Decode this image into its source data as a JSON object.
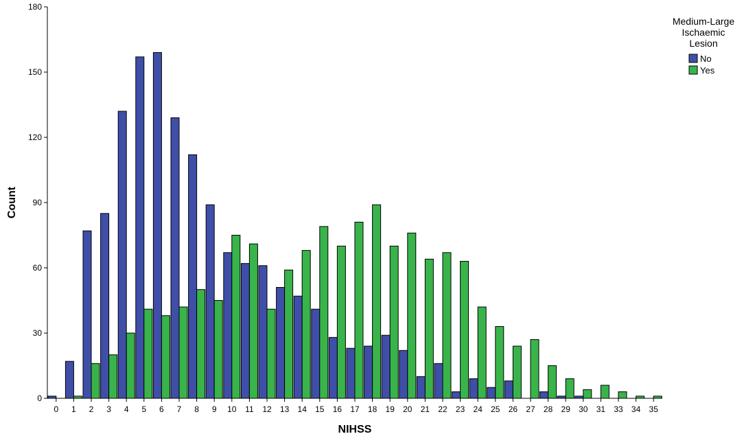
{
  "chart_data": {
    "type": "bar",
    "title": "",
    "xlabel": "NIHSS",
    "ylabel": "Count",
    "ylim": [
      0,
      180
    ],
    "yticks": [
      0,
      30,
      60,
      90,
      120,
      150,
      180
    ],
    "grid": false,
    "legend": {
      "title": "Medium-Large Ischaemic Lesion",
      "title_lines": [
        "Medium-Large",
        "Ischaemic",
        "Lesion"
      ],
      "placement": "top-right"
    },
    "categories": [
      "0",
      "1",
      "2",
      "3",
      "4",
      "5",
      "6",
      "7",
      "8",
      "9",
      "10",
      "11",
      "12",
      "13",
      "14",
      "15",
      "16",
      "17",
      "18",
      "19",
      "20",
      "21",
      "22",
      "23",
      "24",
      "25",
      "26",
      "27",
      "28",
      "29",
      "30",
      "31",
      "33",
      "34",
      "35"
    ],
    "series": [
      {
        "name": "No",
        "color": "#3f4fa8",
        "values": [
          1,
          17,
          77,
          85,
          132,
          157,
          159,
          129,
          112,
          89,
          67,
          62,
          61,
          51,
          47,
          41,
          28,
          23,
          24,
          29,
          22,
          10,
          16,
          3,
          9,
          5,
          8,
          0,
          3,
          1,
          1,
          0,
          0,
          0,
          0
        ]
      },
      {
        "name": "Yes",
        "color": "#38b44a",
        "values": [
          0,
          1,
          16,
          20,
          30,
          41,
          38,
          42,
          50,
          45,
          75,
          71,
          41,
          59,
          68,
          79,
          70,
          81,
          89,
          70,
          76,
          64,
          67,
          63,
          42,
          33,
          24,
          27,
          15,
          9,
          4,
          6,
          3,
          1,
          1
        ]
      }
    ]
  }
}
